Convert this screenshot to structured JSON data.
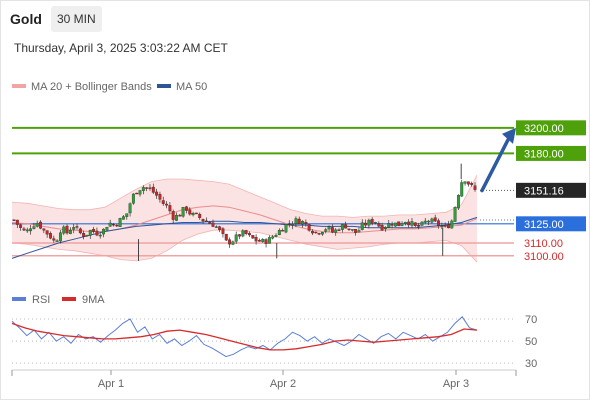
{
  "header": {
    "symbol": "Gold",
    "timeframe": "30 MIN"
  },
  "datetime": "Thursday, April 3, 2025 3:03:22 AM CET",
  "colors": {
    "bull": "#2e9e3a",
    "bear": "#c62828",
    "ma50": "#2f5597",
    "bands": "#e98c8c",
    "band_fill": "#fbe3e3",
    "resistance": "#4fa10b",
    "support_line": "#f2a3a3",
    "support_text": "#d62b2b",
    "ma50_label_bg": "#2a6fdb",
    "arrow": "#2d5aa0",
    "rsi": "#5b7fd6",
    "rsi_ma": "#d62b2b"
  },
  "chart_data": [
    {
      "type": "candlestick",
      "instrument": "Gold",
      "interval": "30 MIN",
      "legend": [
        {
          "label": "MA 20 + Bollinger Bands",
          "color": "#f2a3a3"
        },
        {
          "label": "MA 50",
          "color": "#2f5597"
        }
      ],
      "x_ticks": [
        "Apr 1",
        "Apr 2",
        "Apr 3"
      ],
      "y_range": [
        3085,
        3228
      ],
      "levels": [
        {
          "value": 3200.0,
          "label": "3200.00",
          "kind": "resistance"
        },
        {
          "value": 3180.0,
          "label": "3180.00",
          "kind": "resistance"
        },
        {
          "value": 3151.16,
          "label": "3151.16",
          "kind": "current"
        },
        {
          "value": 3125.0,
          "label": "3125.00",
          "kind": "ma"
        },
        {
          "value": 3110.0,
          "label": "3110.00",
          "kind": "support"
        },
        {
          "value": 3100.0,
          "label": "3100.00",
          "kind": "support"
        }
      ],
      "close_path": [
        3128,
        3122,
        3118,
        3124,
        3126,
        3120,
        3116,
        3110,
        3122,
        3118,
        3124,
        3118,
        3116,
        3120,
        3118,
        3119,
        3126,
        3124,
        3128,
        3132,
        3146,
        3152,
        3154,
        3152,
        3148,
        3142,
        3138,
        3130,
        3132,
        3138,
        3132,
        3131,
        3128,
        3126,
        3124,
        3118,
        3110,
        3112,
        3116,
        3118,
        3114,
        3112,
        3111,
        3112,
        3116,
        3120,
        3124,
        3126,
        3128,
        3126,
        3122,
        3118,
        3120,
        3122,
        3118,
        3122,
        3124,
        3120,
        3118,
        3124,
        3126,
        3128,
        3122,
        3124,
        3126,
        3124,
        3128,
        3126,
        3122,
        3124,
        3128,
        3126,
        3124,
        3122,
        3126,
        3146,
        3162,
        3156,
        3151
      ],
      "ma50": [
        3098,
        3102,
        3106,
        3110,
        3113,
        3116,
        3119,
        3121,
        3123,
        3124,
        3125,
        3126,
        3126,
        3127,
        3127,
        3126,
        3126,
        3125,
        3124,
        3124,
        3123,
        3123,
        3123,
        3122,
        3122,
        3122,
        3122,
        3123,
        3124,
        3126,
        3130
      ],
      "ma20": [
        3126,
        3125,
        3123,
        3121,
        3120,
        3119,
        3119,
        3121,
        3124,
        3128,
        3132,
        3136,
        3138,
        3139,
        3138,
        3135,
        3132,
        3128,
        3124,
        3121,
        3119,
        3118,
        3118,
        3119,
        3120,
        3121,
        3121,
        3122,
        3123,
        3124,
        3129
      ],
      "bb_upper": [
        3142,
        3141,
        3139,
        3137,
        3136,
        3136,
        3138,
        3145,
        3152,
        3158,
        3160,
        3160,
        3159,
        3158,
        3156,
        3151,
        3146,
        3141,
        3136,
        3133,
        3131,
        3131,
        3130,
        3131,
        3131,
        3132,
        3132,
        3133,
        3134,
        3140,
        3163
      ],
      "bb_lower": [
        3110,
        3109,
        3107,
        3105,
        3104,
        3102,
        3100,
        3097,
        3096,
        3098,
        3104,
        3112,
        3117,
        3120,
        3120,
        3119,
        3118,
        3115,
        3112,
        3109,
        3107,
        3105,
        3106,
        3107,
        3109,
        3110,
        3110,
        3111,
        3112,
        3108,
        3095
      ]
    },
    {
      "type": "line",
      "name": "RSI panel",
      "legend": [
        {
          "label": "RSI",
          "color": "#5b7fd6"
        },
        {
          "label": "9MA",
          "color": "#d62b2b"
        }
      ],
      "y_ticks": [
        70,
        50,
        30
      ],
      "y_range": [
        22,
        80
      ],
      "rsi": [
        68,
        62,
        55,
        60,
        52,
        58,
        50,
        54,
        48,
        56,
        52,
        54,
        49,
        55,
        60,
        66,
        70,
        58,
        63,
        52,
        56,
        48,
        52,
        46,
        50,
        55,
        47,
        44,
        40,
        36,
        38,
        42,
        45,
        43,
        46,
        42,
        48,
        52,
        58,
        55,
        50,
        54,
        48,
        52,
        49,
        46,
        50,
        56,
        52,
        48,
        54,
        57,
        52,
        58,
        55,
        52,
        56,
        50,
        54,
        58,
        66,
        72,
        62,
        60
      ],
      "rsi_ma": [
        66,
        62,
        59,
        57,
        55,
        54,
        53,
        52,
        52,
        53,
        54,
        56,
        59,
        60,
        58,
        56,
        53,
        50,
        47,
        44,
        42,
        42,
        43,
        45,
        47,
        50,
        51,
        50,
        49,
        50,
        51,
        52,
        53,
        54,
        56,
        61,
        60
      ]
    }
  ]
}
